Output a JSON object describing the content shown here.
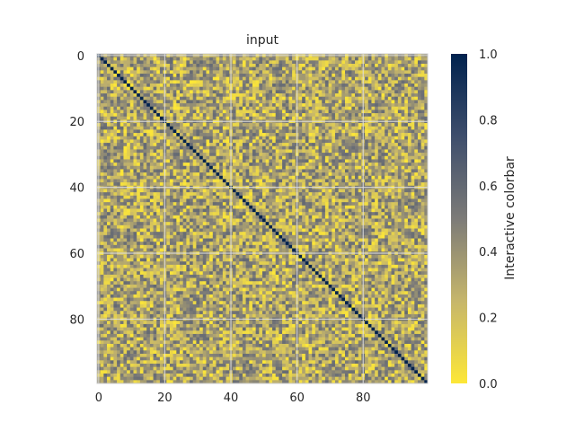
{
  "chart_data": {
    "type": "heatmap",
    "title": "input",
    "n_rows": 100,
    "n_cols": 100,
    "diagonal_value": 1.0,
    "off_diagonal_range": [
      0.0,
      0.6
    ],
    "value_range": [
      0.0,
      1.0
    ],
    "colormap": "cividis",
    "colorbar_label": "Interactive colorbar",
    "colorbar_ticks": [
      "0.0",
      "0.2",
      "0.4",
      "0.6",
      "0.8",
      "1.0"
    ],
    "colorbar_tick_values": [
      0.0,
      0.2,
      0.4,
      0.6,
      0.8,
      1.0
    ],
    "x_ticks": [
      "0",
      "20",
      "40",
      "60",
      "80"
    ],
    "x_tick_values": [
      0,
      20,
      40,
      60,
      80
    ],
    "y_ticks": [
      "0",
      "20",
      "40",
      "60",
      "80"
    ],
    "y_tick_values": [
      0,
      20,
      40,
      60,
      80
    ],
    "grid": true,
    "colormap_stops": [
      "#fde737",
      "#c6b66b",
      "#7c7b78",
      "#3e4e6c",
      "#00224e"
    ]
  }
}
